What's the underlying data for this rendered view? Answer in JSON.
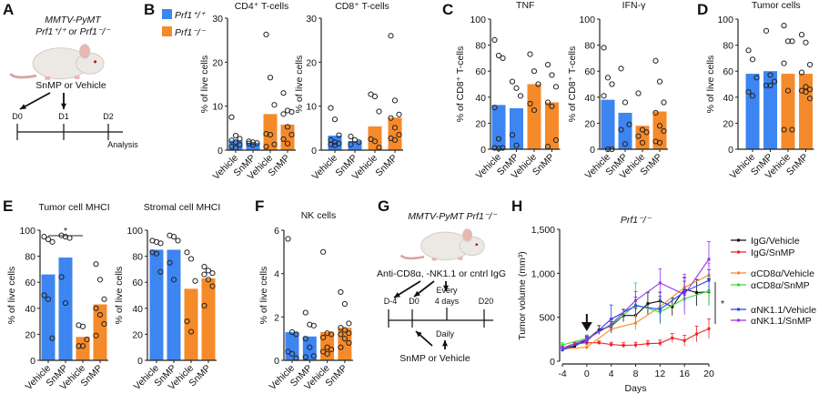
{
  "panel_letters": [
    "A",
    "B",
    "C",
    "D",
    "E",
    "F",
    "G",
    "H"
  ],
  "colors": {
    "prf1_wt": "#3d85f0",
    "prf1_ko": "#f58a2a",
    "dot": "#222222"
  },
  "legend_b": [
    {
      "label": "Prf1⁺/⁺",
      "color": "#3d85f0"
    },
    {
      "label": "Prf1⁻/⁻",
      "color": "#f58a2a"
    }
  ],
  "schematic_a": {
    "title_line1": "MMTV-PyMT",
    "title_line2": "Prf1⁺/⁺ or Prf1⁻/⁻",
    "treatment": "SnMP or Vehicle",
    "days": [
      "D0",
      "D1",
      "D2"
    ],
    "endpoint": "Analysis"
  },
  "schematic_g": {
    "title": "MMTV-PyMT Prf1⁻/⁻",
    "antibody": "Anti-CD8α, -NK1.1 or cntrl IgG",
    "days": [
      "D-4",
      "D0",
      "D20"
    ],
    "every_line1": "Every",
    "every_line2": "4 days",
    "daily": "Daily",
    "treatment": "SnMP or Vehicle"
  },
  "chart_data": [
    {
      "panel": "B",
      "type": "bar",
      "title": "CD4⁺ T-cells",
      "ylabel": "% of live cells",
      "ylim": [
        0,
        30
      ],
      "yticks": [
        0,
        10,
        20,
        30
      ],
      "categories": [
        "Vehicle",
        "SnMP",
        "Vehicle",
        "SnMP"
      ],
      "groups": [
        "Prf1⁺/⁺",
        "Prf1⁺/⁺",
        "Prf1⁻/⁻",
        "Prf1⁻/⁻"
      ],
      "values": [
        2.2,
        1.7,
        8.2,
        5.8
      ],
      "points": [
        [
          7.5,
          3.3,
          2.6,
          2.2,
          1.8,
          1.2,
          0.8,
          0.5
        ],
        [
          2.0,
          1.8,
          1.6,
          1.5,
          1.2
        ],
        [
          26.3,
          16.5,
          10.3,
          3.7,
          3.5,
          1.3,
          0.8
        ],
        [
          13.0,
          9.0,
          8.7,
          8.2,
          5.3,
          3.5,
          2.5,
          1.5
        ]
      ]
    },
    {
      "panel": "B",
      "type": "bar",
      "title": "CD8⁺ T-cells",
      "ylabel": "% of live cells",
      "ylim": [
        0,
        30
      ],
      "yticks": [
        0,
        10,
        20,
        30
      ],
      "categories": [
        "Vehicle",
        "SnMP",
        "Vehicle",
        "SnMP"
      ],
      "groups": [
        "Prf1⁺/⁺",
        "Prf1⁺/⁺",
        "Prf1⁻/⁻",
        "Prf1⁻/⁻"
      ],
      "values": [
        3.3,
        2.1,
        5.4,
        7.4
      ],
      "points": [
        [
          9.6,
          7.0,
          3.4,
          2.3,
          1.8,
          1.5,
          1.3,
          1.1
        ],
        [
          3.1,
          2.3,
          1.8,
          1.3
        ],
        [
          12.7,
          12.2,
          8.8,
          2.5,
          2.0,
          0.6
        ],
        [
          26.0,
          11.3,
          8.1,
          7.3,
          5.1,
          3.5,
          2.7,
          2.3
        ]
      ]
    },
    {
      "panel": "C",
      "type": "bar",
      "title": "TNF",
      "ylabel": "% of CD8⁺ T-cells",
      "ylim": [
        0,
        100
      ],
      "yticks": [
        0,
        20,
        40,
        60,
        80,
        100
      ],
      "categories": [
        "Vehicle",
        "SnMP",
        "Vehicle",
        "SnMP"
      ],
      "groups": [
        "Prf1⁺/⁺",
        "Prf1⁺/⁺",
        "Prf1⁻/⁻",
        "Prf1⁻/⁻"
      ],
      "values": [
        34,
        31.5,
        50,
        36
      ],
      "points": [
        [
          84,
          72,
          70,
          32,
          8,
          1,
          1,
          0.5
        ],
        [
          52,
          47,
          41,
          11,
          3
        ],
        [
          73,
          60,
          50,
          35,
          30
        ],
        [
          65,
          57,
          48,
          36,
          33,
          7,
          2
        ]
      ]
    },
    {
      "panel": "C",
      "type": "bar",
      "title": "IFN-γ",
      "ylabel": "% of CD8⁺ T-cells",
      "ylim": [
        0,
        100
      ],
      "yticks": [
        0,
        20,
        40,
        60,
        80,
        100
      ],
      "categories": [
        "Vehicle",
        "SnMP",
        "Vehicle",
        "SnMP"
      ],
      "groups": [
        "Prf1⁺/⁺",
        "Prf1⁺/⁺",
        "Prf1⁻/⁻",
        "Prf1⁻/⁻"
      ],
      "values": [
        38,
        28,
        18,
        29
      ],
      "points": [
        [
          78,
          55,
          50,
          41,
          0,
          0
        ],
        [
          62,
          36,
          19,
          15,
          4
        ],
        [
          43,
          15,
          13,
          10,
          5
        ],
        [
          68,
          52,
          36,
          28,
          18,
          14,
          6,
          5
        ]
      ]
    },
    {
      "panel": "D",
      "type": "bar",
      "title": "Tumor cells",
      "ylabel": "% of live cells",
      "ylim": [
        0,
        100
      ],
      "yticks": [
        0,
        20,
        40,
        60,
        80,
        100
      ],
      "categories": [
        "Vehicle",
        "SnMP",
        "Vehicle",
        "SnMP"
      ],
      "groups": [
        "Prf1⁺/⁺",
        "Prf1⁺/⁺",
        "Prf1⁻/⁻",
        "Prf1⁻/⁻"
      ],
      "values": [
        58,
        60,
        58,
        58
      ],
      "points": [
        [
          76,
          69,
          55,
          44,
          41
        ],
        [
          91,
          57,
          52,
          49,
          49
        ],
        [
          95,
          83,
          83,
          66,
          45,
          15,
          15
        ],
        [
          88,
          82,
          65,
          59,
          48,
          46,
          45,
          44,
          39
        ]
      ]
    },
    {
      "panel": "E",
      "type": "bar",
      "title": "Tumor cell MHCI",
      "ylabel": "% of live cells",
      "ylim": [
        0,
        100
      ],
      "yticks": [
        0,
        20,
        40,
        60,
        80,
        100
      ],
      "categories": [
        "Vehicle",
        "SnMP",
        "Vehicle",
        "SnMP"
      ],
      "groups": [
        "Prf1⁺/⁺",
        "Prf1⁺/⁺",
        "Prf1⁻/⁻",
        "Prf1⁻/⁻"
      ],
      "values": [
        66,
        79,
        18,
        43
      ],
      "points": [
        [
          95,
          93,
          91,
          50,
          47,
          17
        ],
        [
          96,
          95,
          94,
          64,
          44
        ],
        [
          27,
          26,
          16,
          11,
          11
        ],
        [
          74,
          62,
          47,
          40,
          35,
          28,
          19
        ]
      ],
      "significance": {
        "from": 0,
        "to": 2,
        "label": "*"
      }
    },
    {
      "panel": "E",
      "type": "bar",
      "title": "Stromal cell MHCI",
      "ylabel": "% of live cells",
      "ylim": [
        0,
        100
      ],
      "yticks": [
        0,
        20,
        40,
        60,
        80,
        100
      ],
      "categories": [
        "Vehicle",
        "SnMP",
        "Vehicle",
        "SnMP"
      ],
      "groups": [
        "Prf1⁺/⁺",
        "Prf1⁺/⁺",
        "Prf1⁻/⁻",
        "Prf1⁻/⁻"
      ],
      "values": [
        85,
        85,
        55,
        63
      ],
      "points": [
        [
          92,
          91,
          90,
          83,
          82,
          68
        ],
        [
          96,
          95,
          92,
          75,
          62
        ],
        [
          83,
          78,
          61,
          30,
          22
        ],
        [
          72,
          69,
          67,
          66,
          62,
          57,
          42
        ]
      ]
    },
    {
      "panel": "F",
      "type": "bar",
      "title": "NK cells",
      "ylabel": "% of live cells",
      "ylim": [
        0,
        6
      ],
      "yticks": [
        0,
        2,
        4,
        6
      ],
      "categories": [
        "Vehicle",
        "SnMP",
        "Vehicle",
        "SnMP"
      ],
      "groups": [
        "Prf1⁺/⁺",
        "Prf1⁺/⁺",
        "Prf1⁻/⁻",
        "Prf1⁻/⁻"
      ],
      "values": [
        1.3,
        1.1,
        1.3,
        1.5
      ],
      "points": [
        [
          5.6,
          1.3,
          1.2,
          0.4,
          0.3,
          0.1
        ],
        [
          2.2,
          1.65,
          1.6,
          1.0,
          0.6,
          0.2,
          0.15
        ],
        [
          5.0,
          1.25,
          1.2,
          1.05,
          0.6,
          0.5,
          0.4,
          0.3
        ],
        [
          3.15,
          2.6,
          1.7,
          1.5,
          1.4,
          1.25,
          1.2,
          1.0,
          0.8,
          0.6
        ]
      ]
    },
    {
      "panel": "H",
      "type": "line",
      "title": "Prf1⁻/⁻",
      "xlabel": "Days",
      "ylabel": "Tumor volume (mm³)",
      "xlim": [
        -4,
        20
      ],
      "xticks": [
        -4,
        0,
        4,
        8,
        12,
        16,
        20
      ],
      "ylim": [
        0,
        1500
      ],
      "yticks": [
        0,
        500,
        1000,
        1500
      ],
      "ytick_labels": [
        "0",
        "500",
        "1,000",
        "1,500"
      ],
      "treatment_start_arrow_x": 0,
      "significance": {
        "label": "*"
      },
      "legend": "right",
      "series": [
        {
          "name": "IgG/Vehicle",
          "color": "#111111",
          "x": [
            -4,
            -2,
            0,
            2,
            4,
            6,
            8,
            10,
            12,
            14,
            16,
            18,
            20
          ],
          "y": [
            130,
            170,
            250,
            355,
            400,
            520,
            520,
            655,
            685,
            620,
            820,
            780,
            790
          ],
          "err": [
            20,
            20,
            30,
            50,
            50,
            70,
            80,
            130,
            100,
            100,
            130,
            150,
            150
          ]
        },
        {
          "name": "IgG/SnMP",
          "color": "#ee2222",
          "x": [
            -4,
            -2,
            0,
            2,
            4,
            6,
            8,
            10,
            12,
            14,
            16,
            18,
            20
          ],
          "y": [
            130,
            200,
            210,
            210,
            190,
            180,
            185,
            200,
            205,
            265,
            235,
            310,
            370
          ],
          "err": [
            20,
            20,
            25,
            20,
            25,
            30,
            30,
            35,
            35,
            50,
            60,
            90,
            110
          ]
        },
        {
          "name": "αCD8α/Vehicle",
          "color": "#f58a2a",
          "x": [
            -4,
            0,
            4,
            8,
            12,
            16,
            20
          ],
          "y": [
            140,
            160,
            365,
            435,
            620,
            840,
            980
          ],
          "err": [
            20,
            30,
            40,
            80,
            100,
            120,
            130
          ]
        },
        {
          "name": "αCD8α/SnMP",
          "color": "#33dd33",
          "x": [
            -4,
            0,
            4,
            8,
            12,
            16,
            20
          ],
          "y": [
            185,
            260,
            410,
            640,
            560,
            710,
            800
          ],
          "err": [
            25,
            40,
            60,
            250,
            140,
            110,
            170
          ]
        },
        {
          "name": "αNK1.1/Vehicle",
          "color": "#2244ee",
          "x": [
            -4,
            0,
            4,
            8,
            12,
            16,
            20
          ],
          "y": [
            130,
            230,
            480,
            630,
            590,
            790,
            920
          ],
          "err": [
            20,
            40,
            160,
            100,
            150,
            120,
            120
          ]
        },
        {
          "name": "αNK1.1/SnMP",
          "color": "#9933ee",
          "x": [
            -4,
            0,
            4,
            8,
            12,
            16,
            20
          ],
          "y": [
            150,
            250,
            420,
            690,
            890,
            760,
            1160
          ],
          "err": [
            20,
            40,
            60,
            100,
            160,
            230,
            200
          ]
        }
      ]
    }
  ]
}
